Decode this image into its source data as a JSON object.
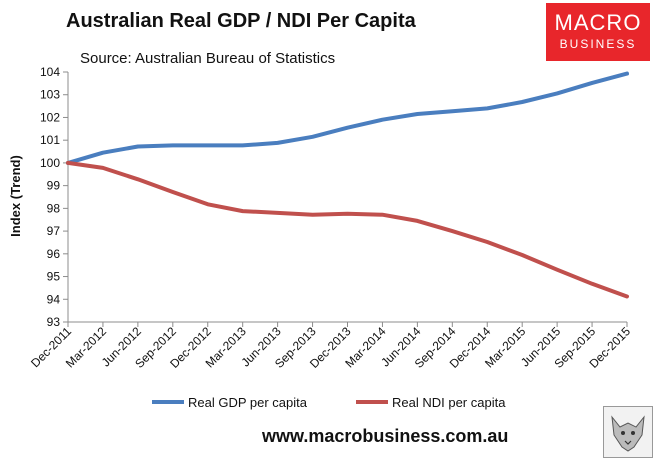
{
  "header": {
    "title": "Australian Real GDP / NDI Per Capita",
    "source": "Source: Australian Bureau of Statistics"
  },
  "logo": {
    "line1": "MACRO",
    "line2": "BUSINESS"
  },
  "footer": {
    "website": "www.macrobusiness.com.au"
  },
  "colors": {
    "gdp": "#4a7ebf",
    "ndi": "#c0504d",
    "logo_bg": "#e8262b"
  },
  "chart_data": {
    "type": "line",
    "title": "Australian Real GDP / NDI Per Capita",
    "xlabel": "",
    "ylabel": "Index (Trend)",
    "ylim": [
      93,
      104
    ],
    "yticks": [
      93,
      94,
      95,
      96,
      97,
      98,
      99,
      100,
      101,
      102,
      103,
      104
    ],
    "grid": false,
    "legend": "bottom",
    "categories": [
      "Dec-2011",
      "Mar-2012",
      "Jun-2012",
      "Sep-2012",
      "Dec-2012",
      "Mar-2013",
      "Jun-2013",
      "Sep-2013",
      "Dec-2013",
      "Mar-2014",
      "Jun-2014",
      "Sep-2014",
      "Dec-2014",
      "Mar-2015",
      "Jun-2015",
      "Sep-2015",
      "Dec-2015"
    ],
    "series": [
      {
        "name": "Real GDP per capita",
        "color": "#4a7ebf",
        "values": [
          100.0,
          100.45,
          100.72,
          100.77,
          100.77,
          100.77,
          100.88,
          101.15,
          101.55,
          101.9,
          102.15,
          102.27,
          102.4,
          102.68,
          103.06,
          103.52,
          103.93
        ]
      },
      {
        "name": "Real NDI per capita",
        "color": "#c0504d",
        "values": [
          100.0,
          99.78,
          99.28,
          98.72,
          98.18,
          97.88,
          97.8,
          97.72,
          97.76,
          97.72,
          97.45,
          97.0,
          96.52,
          95.95,
          95.3,
          94.68,
          94.12
        ]
      }
    ]
  }
}
